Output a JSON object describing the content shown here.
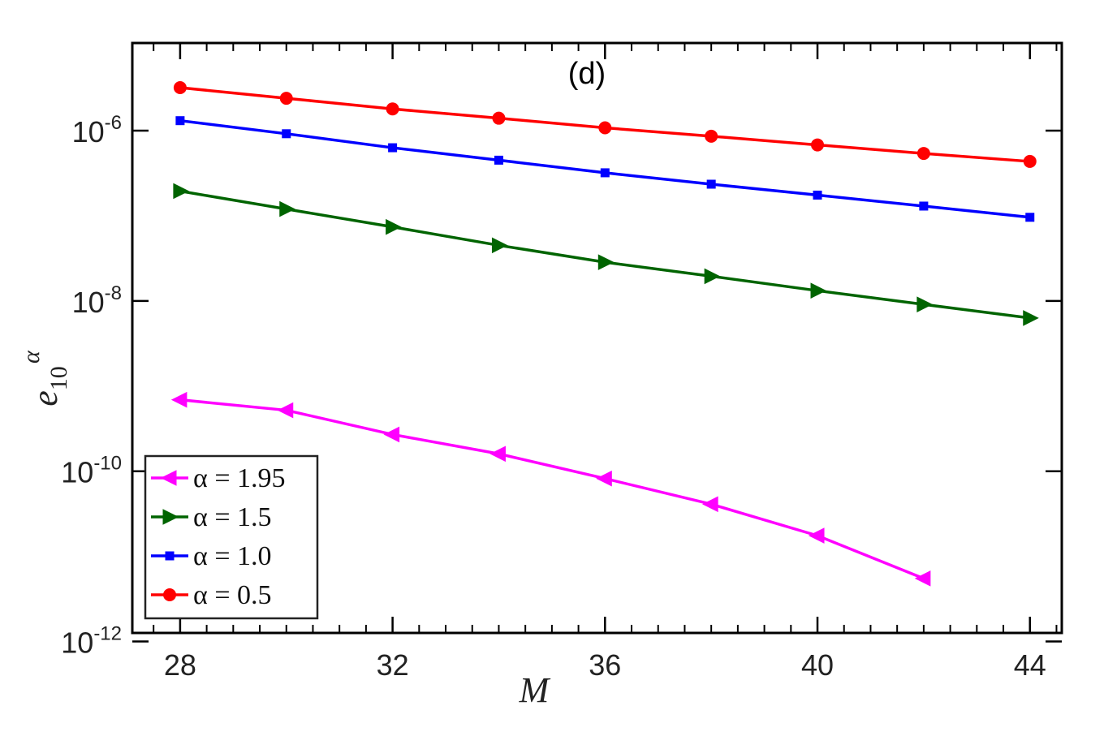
{
  "chart_data": {
    "type": "line",
    "title": "(d)",
    "xlabel": "M",
    "ylabel": "e",
    "ylabel_superscript": "α",
    "ylabel_subscript": "10",
    "yscale": "log",
    "xlim": [
      27.1,
      44.6
    ],
    "ylim": [
      1.26e-12,
      1.07e-05
    ],
    "xticks": [
      28,
      32,
      36,
      40,
      44
    ],
    "xtick_labels": [
      "28",
      "32",
      "36",
      "40",
      "44"
    ],
    "yticks": [
      1e-12,
      1e-10,
      1e-08,
      1e-06
    ],
    "ytick_labels": [
      {
        "base": "10",
        "exp": "-12"
      },
      {
        "base": "10",
        "exp": "-10"
      },
      {
        "base": "10",
        "exp": "-8"
      },
      {
        "base": "10",
        "exp": "-6"
      }
    ],
    "grid": false,
    "legend_position": "bottom-left",
    "series": [
      {
        "name": "α = 1.95",
        "color": "#ff00ff",
        "marker": "triangle-left",
        "x": [
          28,
          30,
          32,
          34,
          36,
          38,
          40,
          42
        ],
        "y": [
          6.9e-10,
          5.2e-10,
          2.7e-10,
          1.6e-10,
          8.2e-11,
          4.1e-11,
          1.75e-11,
          5.5e-12
        ]
      },
      {
        "name": "α = 1.5",
        "color": "#006400",
        "marker": "triangle-right",
        "x": [
          28,
          30,
          32,
          34,
          36,
          38,
          40,
          42,
          44
        ],
        "y": [
          1.95e-07,
          1.2e-07,
          7.4e-08,
          4.5e-08,
          2.85e-08,
          1.95e-08,
          1.32e-08,
          9.1e-09,
          6.3e-09
        ]
      },
      {
        "name": "α = 1.0",
        "color": "#0000ff",
        "marker": "square",
        "x": [
          28,
          30,
          32,
          34,
          36,
          38,
          40,
          42,
          44
        ],
        "y": [
          1.31e-06,
          9.2e-07,
          6.3e-07,
          4.5e-07,
          3.2e-07,
          2.35e-07,
          1.75e-07,
          1.3e-07,
          9.6e-08
        ]
      },
      {
        "name": "α = 0.5",
        "color": "#ff0000",
        "marker": "circle",
        "x": [
          28,
          30,
          32,
          34,
          36,
          38,
          40,
          42,
          44
        ],
        "y": [
          3.2e-06,
          2.4e-06,
          1.8e-06,
          1.4e-06,
          1.08e-06,
          8.6e-07,
          6.8e-07,
          5.4e-07,
          4.35e-07
        ]
      }
    ]
  }
}
